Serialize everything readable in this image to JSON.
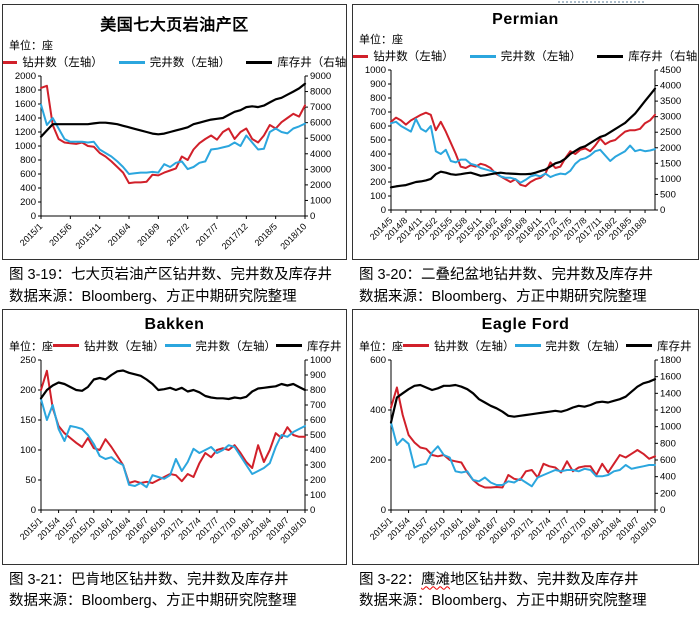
{
  "accent_colors": {
    "drilling_red": "#d1202a",
    "completion_blue": "#2ba6de",
    "inventory_black": "#000000"
  },
  "chart_data": [
    {
      "type": "line",
      "title": "美国七大页岩油产区",
      "unit_label": "单位：座",
      "legend": [
        "钻井数（左轴）",
        "完井数（左轴）",
        "库存井（右轴）"
      ],
      "left_axis": {
        "min": 0,
        "max": 2000,
        "step": 200
      },
      "right_axis": {
        "min": 0,
        "max": 9000,
        "step": 1000
      },
      "x_start": "2015/1",
      "x_end": "2018/10",
      "freq": "monthly",
      "x_tick_labels": [
        "2015/1",
        "2015/6",
        "2015/11",
        "2016/4",
        "2016/9",
        "2017/2",
        "2017/7",
        "2017/12",
        "2018/5",
        "2018/10"
      ],
      "x_tick_step": 5,
      "series": [
        {
          "name": "钻井数",
          "axis": "left",
          "color": "#d1202a",
          "values": [
            1830,
            1860,
            1300,
            1100,
            1050,
            1040,
            1030,
            1050,
            1000,
            990,
            900,
            850,
            780,
            700,
            620,
            470,
            480,
            480,
            490,
            590,
            580,
            620,
            650,
            680,
            850,
            800,
            950,
            1040,
            1100,
            1150,
            1090,
            1200,
            1250,
            1100,
            1200,
            1250,
            1100,
            1050,
            1150,
            1300,
            1250,
            1340,
            1400,
            1460,
            1420,
            1580
          ]
        },
        {
          "name": "完井数",
          "axis": "left",
          "color": "#2ba6de",
          "values": [
            1590,
            1300,
            1400,
            1250,
            1100,
            1060,
            1060,
            1060,
            1050,
            1060,
            950,
            900,
            850,
            780,
            700,
            600,
            610,
            620,
            620,
            630,
            620,
            740,
            700,
            760,
            780,
            670,
            700,
            760,
            780,
            950,
            960,
            980,
            1000,
            1050,
            1000,
            1150,
            1050,
            950,
            960,
            1200,
            1250,
            1200,
            1180,
            1250,
            1280,
            1320
          ]
        },
        {
          "name": "库存井",
          "axis": "right",
          "color": "#000000",
          "values": [
            5100,
            5500,
            5900,
            5900,
            5900,
            5900,
            5900,
            5900,
            5900,
            5950,
            6000,
            6000,
            5950,
            5900,
            5800,
            5700,
            5600,
            5500,
            5400,
            5300,
            5250,
            5300,
            5400,
            5500,
            5600,
            5700,
            5900,
            6000,
            6100,
            6200,
            6250,
            6300,
            6500,
            6700,
            6800,
            7000,
            7050,
            7000,
            7100,
            7300,
            7500,
            7600,
            7800,
            8000,
            8200,
            8500
          ]
        }
      ],
      "caption": "图 3-19：七大页岩油产区钻井数、完井数及库存井",
      "source": "数据来源：Bloomberg、方正中期研究院整理"
    },
    {
      "type": "line",
      "title": "Permian",
      "unit_label": "单位：座",
      "legend": [
        "钻井数（左轴）",
        "完井数（左轴）",
        "库存井（右轴）"
      ],
      "left_axis": {
        "min": 0,
        "max": 1000,
        "step": 100
      },
      "right_axis": {
        "min": 0,
        "max": 4500,
        "step": 500
      },
      "x_start": "2014/5",
      "x_end": "2018/10",
      "freq": "monthly",
      "x_tick_labels": [
        "2014/5",
        "2014/8",
        "2014/11",
        "2015/2",
        "2015/5",
        "2015/8",
        "2015/11",
        "2016/2",
        "2016/5",
        "2016/8",
        "2016/11",
        "2017/2",
        "2017/5",
        "2017/8",
        "2017/11",
        "2018/2",
        "2018/5",
        "2018/8"
      ],
      "x_tick_step": 3,
      "series": [
        {
          "name": "钻井数",
          "axis": "left",
          "color": "#d1202a",
          "values": [
            630,
            660,
            640,
            610,
            640,
            660,
            680,
            695,
            680,
            570,
            630,
            560,
            480,
            400,
            310,
            300,
            320,
            310,
            330,
            320,
            300,
            260,
            240,
            220,
            200,
            220,
            180,
            170,
            200,
            220,
            230,
            260,
            340,
            300,
            310,
            370,
            420,
            400,
            430,
            440,
            420,
            460,
            510,
            470,
            490,
            500,
            530,
            560,
            570,
            570,
            580,
            620,
            640,
            680
          ]
        },
        {
          "name": "完井数",
          "axis": "left",
          "color": "#2ba6de",
          "values": [
            620,
            630,
            600,
            580,
            560,
            650,
            580,
            560,
            600,
            420,
            400,
            430,
            350,
            340,
            360,
            360,
            330,
            320,
            300,
            290,
            280,
            270,
            240,
            230,
            230,
            220,
            195,
            215,
            240,
            250,
            240,
            260,
            235,
            250,
            260,
            255,
            280,
            330,
            360,
            370,
            390,
            420,
            430,
            390,
            350,
            380,
            400,
            420,
            460,
            420,
            430,
            420,
            425,
            435
          ]
        },
        {
          "name": "库存井",
          "axis": "right",
          "color": "#000000",
          "values": [
            730,
            760,
            780,
            800,
            850,
            900,
            920,
            950,
            1000,
            1150,
            1230,
            1200,
            1150,
            1130,
            1150,
            1180,
            1200,
            1150,
            1100,
            1120,
            1150,
            1180,
            1200,
            1180,
            1170,
            1160,
            1150,
            1150,
            1160,
            1200,
            1250,
            1300,
            1400,
            1500,
            1550,
            1650,
            1800,
            1900,
            2000,
            2050,
            2150,
            2250,
            2350,
            2400,
            2500,
            2600,
            2700,
            2800,
            2950,
            3100,
            3300,
            3500,
            3700,
            3900
          ]
        }
      ],
      "caption": "图 3-20：二叠纪盆地钻井数、完井数及库存井",
      "source": "数据来源：Bloomberg、方正中期研究院整理"
    },
    {
      "type": "line",
      "title": "Bakken",
      "unit_label": "单位：座",
      "legend": [
        "钻井数（左轴）",
        "完井数（左轴）",
        "库存井（右轴）"
      ],
      "left_axis": {
        "min": 0,
        "max": 250,
        "step": 50
      },
      "right_axis": {
        "min": 0,
        "max": 1000,
        "step": 100
      },
      "x_start": "2015/1",
      "x_end": "2018/10",
      "freq": "monthly",
      "x_tick_labels": [
        "2015/1",
        "2015/4",
        "2015/7",
        "2015/10",
        "2016/1",
        "2016/4",
        "2016/7",
        "2016/10",
        "2017/1",
        "2017/4",
        "2017/7",
        "2017/10",
        "2018/1",
        "2018/4",
        "2018/7",
        "2018/10"
      ],
      "x_tick_step": 3,
      "series": [
        {
          "name": "钻井数",
          "axis": "left",
          "color": "#d1202a",
          "values": [
            200,
            232,
            170,
            140,
            128,
            120,
            112,
            105,
            120,
            103,
            100,
            118,
            105,
            90,
            75,
            45,
            48,
            45,
            47,
            45,
            50,
            55,
            60,
            58,
            48,
            60,
            55,
            78,
            95,
            88,
            100,
            103,
            100,
            108,
            95,
            80,
            70,
            108,
            80,
            100,
            128,
            120,
            138,
            125,
            122,
            122
          ]
        },
        {
          "name": "完井数",
          "axis": "left",
          "color": "#2ba6de",
          "values": [
            185,
            150,
            175,
            135,
            115,
            140,
            138,
            135,
            125,
            110,
            90,
            85,
            88,
            80,
            75,
            42,
            40,
            45,
            38,
            58,
            55,
            52,
            58,
            85,
            65,
            80,
            102,
            95,
            100,
            105,
            95,
            100,
            108,
            105,
            90,
            75,
            60,
            65,
            70,
            78,
            105,
            125,
            122,
            130,
            135,
            140
          ]
        },
        {
          "name": "库存井",
          "axis": "right",
          "color": "#000000",
          "values": [
            745,
            800,
            830,
            850,
            840,
            820,
            800,
            795,
            820,
            870,
            880,
            870,
            900,
            925,
            930,
            915,
            905,
            895,
            870,
            840,
            800,
            805,
            815,
            800,
            815,
            790,
            800,
            785,
            760,
            750,
            745,
            745,
            740,
            750,
            745,
            755,
            790,
            810,
            815,
            820,
            825,
            840,
            830,
            840,
            820,
            800
          ]
        }
      ],
      "caption": "图 3-21：巴肯地区钻井数、完井数及库存井",
      "source": "数据来源：Bloomberg、方正中期研究院整理"
    },
    {
      "type": "line",
      "title": "Eagle Ford",
      "unit_label": "单位：座",
      "legend": [
        "钻井数（左轴）",
        "完井数（左轴）",
        "库存井（右轴）"
      ],
      "left_axis": {
        "min": 0,
        "max": 600,
        "step": 200
      },
      "right_axis": {
        "min": 0,
        "max": 1800,
        "step": 200
      },
      "x_start": "2015/1",
      "x_end": "2018/10",
      "freq": "monthly",
      "x_tick_labels": [
        "2015/1",
        "2015/4",
        "2015/7",
        "2015/10",
        "2016/1",
        "2016/4",
        "2016/7",
        "2016/10",
        "2017/1",
        "2017/4",
        "2017/7",
        "2017/10",
        "2018/1",
        "2018/4",
        "2018/7",
        "2018/10"
      ],
      "x_tick_step": 3,
      "series": [
        {
          "name": "钻井数",
          "axis": "left",
          "color": "#d1202a",
          "values": [
            410,
            490,
            380,
            300,
            270,
            250,
            245,
            220,
            215,
            220,
            200,
            195,
            190,
            150,
            120,
            100,
            90,
            90,
            92,
            90,
            140,
            125,
            120,
            155,
            160,
            130,
            185,
            175,
            170,
            150,
            195,
            155,
            170,
            175,
            175,
            140,
            185,
            150,
            185,
            220,
            210,
            225,
            240,
            225,
            205,
            215
          ]
        },
        {
          "name": "完井数",
          "axis": "left",
          "color": "#2ba6de",
          "values": [
            350,
            260,
            285,
            265,
            170,
            180,
            185,
            230,
            255,
            220,
            210,
            155,
            150,
            155,
            120,
            115,
            130,
            110,
            100,
            100,
            115,
            110,
            125,
            110,
            95,
            130,
            140,
            150,
            160,
            155,
            160,
            160,
            155,
            165,
            160,
            135,
            135,
            140,
            155,
            160,
            180,
            165,
            170,
            175,
            180,
            180
          ]
        },
        {
          "name": "库存井",
          "axis": "right",
          "color": "#000000",
          "values": [
            1050,
            1350,
            1400,
            1450,
            1490,
            1500,
            1470,
            1440,
            1460,
            1490,
            1490,
            1500,
            1480,
            1450,
            1400,
            1330,
            1290,
            1250,
            1220,
            1180,
            1130,
            1120,
            1130,
            1140,
            1150,
            1160,
            1170,
            1180,
            1190,
            1180,
            1200,
            1230,
            1250,
            1240,
            1260,
            1290,
            1300,
            1290,
            1310,
            1330,
            1360,
            1420,
            1480,
            1520,
            1540,
            1570
          ]
        }
      ],
      "caption_parts": [
        "图 3-22：",
        "鹰滩",
        "地区钻井数、完井数及库存井"
      ],
      "source": "数据来源：Bloomberg、方正中期研究院整理"
    }
  ]
}
